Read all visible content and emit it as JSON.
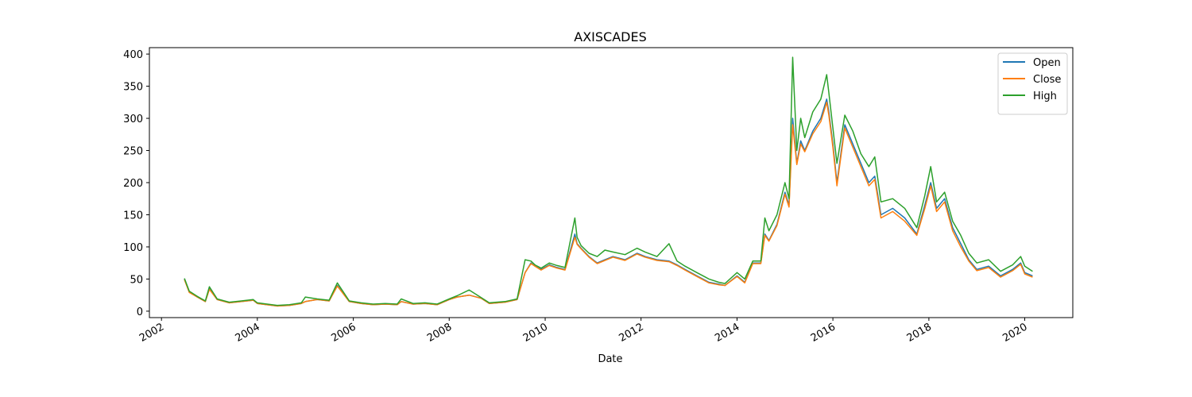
{
  "chart_data": {
    "type": "line",
    "title": "AXISCADES",
    "xlabel": "Date",
    "ylabel": "",
    "xlim": [
      "2001-10-01",
      "2021-01-01"
    ],
    "ylim": [
      -10,
      410
    ],
    "xticks": [
      "2002",
      "2004",
      "2006",
      "2008",
      "2010",
      "2012",
      "2014",
      "2016",
      "2018",
      "2020"
    ],
    "yticks": [
      0,
      50,
      100,
      150,
      200,
      250,
      300,
      350,
      400
    ],
    "grid": false,
    "legend": "top-right",
    "x": [
      "2002-06-25",
      "2002-08-01",
      "2002-10-01",
      "2002-12-01",
      "2003-01-01",
      "2003-03-01",
      "2003-06-01",
      "2003-09-01",
      "2003-12-01",
      "2004-01-01",
      "2004-06-01",
      "2004-09-01",
      "2004-12-01",
      "2005-01-01",
      "2005-04-01",
      "2005-07-01",
      "2005-09-01",
      "2005-12-01",
      "2006-03-01",
      "2006-06-01",
      "2006-09-01",
      "2006-12-01",
      "2007-01-01",
      "2007-04-01",
      "2007-07-01",
      "2007-10-01",
      "2008-01-01",
      "2008-03-01",
      "2008-06-01",
      "2008-09-01",
      "2008-11-01",
      "2009-03-01",
      "2009-06-01",
      "2009-08-01",
      "2009-09-15",
      "2009-10-15",
      "2009-12-01",
      "2010-02-01",
      "2010-04-01",
      "2010-06-01",
      "2010-08-15",
      "2010-09-01",
      "2010-10-01",
      "2010-12-01",
      "2011-02-01",
      "2011-04-01",
      "2011-06-01",
      "2011-09-01",
      "2011-12-01",
      "2012-02-01",
      "2012-05-01",
      "2012-08-01",
      "2012-10-01",
      "2012-12-01",
      "2013-03-01",
      "2013-06-01",
      "2013-08-15",
      "2013-10-01",
      "2014-01-01",
      "2014-03-01",
      "2014-05-01",
      "2014-06-01",
      "2014-07-01",
      "2014-08-01",
      "2014-09-01",
      "2014-11-01",
      "2015-01-01",
      "2015-02-01",
      "2015-03-01",
      "2015-04-01",
      "2015-05-01",
      "2015-06-01",
      "2015-08-01",
      "2015-10-01",
      "2015-11-15",
      "2015-12-01",
      "2016-01-01",
      "2016-02-01",
      "2016-04-01",
      "2016-06-01",
      "2016-08-01",
      "2016-10-01",
      "2016-11-15",
      "2017-01-01",
      "2017-04-01",
      "2017-07-01",
      "2017-10-01",
      "2017-12-01",
      "2018-01-15",
      "2018-03-01",
      "2018-05-01",
      "2018-07-01",
      "2018-09-01",
      "2018-11-01",
      "2019-01-01",
      "2019-04-01",
      "2019-07-01",
      "2019-10-01",
      "2019-12-01",
      "2020-01-01",
      "2020-03-01"
    ],
    "series": [
      {
        "name": "Open",
        "color": "#1f77b4",
        "values": [
          50,
          30,
          22,
          15,
          35,
          18,
          13,
          15,
          17,
          12,
          8,
          9,
          12,
          15,
          18,
          16,
          40,
          15,
          12,
          10,
          11,
          10,
          15,
          11,
          12,
          10,
          18,
          22,
          25,
          20,
          12,
          14,
          18,
          60,
          75,
          70,
          65,
          72,
          68,
          65,
          120,
          105,
          98,
          85,
          75,
          80,
          85,
          80,
          90,
          85,
          80,
          78,
          72,
          65,
          55,
          45,
          42,
          40,
          55,
          45,
          75,
          75,
          75,
          120,
          110,
          135,
          185,
          165,
          300,
          230,
          265,
          250,
          280,
          300,
          330,
          310,
          260,
          200,
          290,
          260,
          230,
          200,
          210,
          150,
          160,
          145,
          120,
          165,
          200,
          160,
          175,
          130,
          105,
          80,
          65,
          70,
          55,
          65,
          75,
          60,
          55
        ]
      },
      {
        "name": "Close",
        "color": "#ff7f0e",
        "values": [
          49,
          29,
          22,
          15,
          34,
          18,
          13,
          15,
          17,
          12,
          8,
          9,
          12,
          15,
          18,
          16,
          39,
          15,
          12,
          10,
          11,
          10,
          15,
          11,
          12,
          10,
          18,
          22,
          25,
          20,
          12,
          14,
          18,
          60,
          74,
          70,
          64,
          71,
          67,
          64,
          115,
          104,
          97,
          84,
          74,
          79,
          84,
          79,
          89,
          84,
          79,
          77,
          71,
          64,
          54,
          44,
          41,
          40,
          54,
          44,
          74,
          74,
          74,
          118,
          109,
          133,
          182,
          162,
          290,
          228,
          260,
          248,
          276,
          295,
          325,
          305,
          255,
          195,
          285,
          255,
          225,
          195,
          205,
          145,
          155,
          140,
          118,
          160,
          195,
          155,
          170,
          125,
          100,
          78,
          63,
          68,
          53,
          63,
          73,
          58,
          53
        ]
      },
      {
        "name": "High",
        "color": "#2ca02c",
        "values": [
          51,
          31,
          23,
          16,
          38,
          19,
          14,
          16,
          18,
          13,
          9,
          10,
          13,
          22,
          19,
          17,
          44,
          16,
          13,
          11,
          12,
          11,
          19,
          12,
          13,
          11,
          19,
          24,
          33,
          21,
          13,
          15,
          19,
          80,
          78,
          72,
          67,
          75,
          71,
          68,
          145,
          115,
          102,
          90,
          85,
          95,
          92,
          88,
          98,
          92,
          85,
          105,
          78,
          70,
          60,
          50,
          45,
          43,
          60,
          50,
          78,
          78,
          78,
          145,
          125,
          150,
          200,
          175,
          395,
          250,
          300,
          270,
          310,
          330,
          368,
          340,
          285,
          230,
          305,
          280,
          245,
          225,
          240,
          170,
          175,
          160,
          130,
          180,
          225,
          170,
          185,
          140,
          118,
          90,
          75,
          80,
          62,
          72,
          85,
          70,
          62
        ]
      }
    ]
  }
}
